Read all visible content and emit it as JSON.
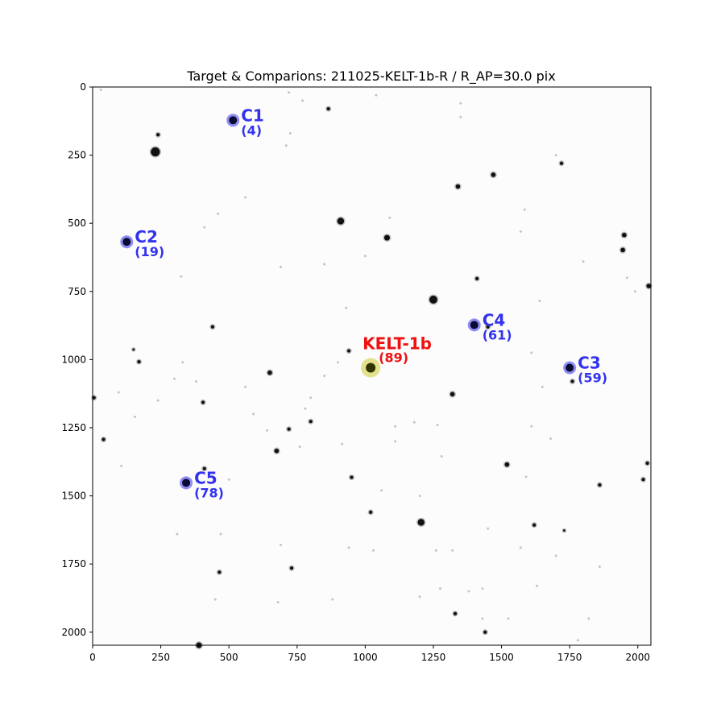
{
  "chart_data": {
    "type": "scatter",
    "title": "Target & Comparions: 211025-KELT-1b-R / R_AP=30.0 pix",
    "xlim": [
      0,
      2048
    ],
    "ylim": [
      2048,
      0
    ],
    "x_ticks": [
      0,
      250,
      500,
      750,
      1000,
      1250,
      1500,
      1750,
      2000
    ],
    "y_ticks": [
      0,
      250,
      500,
      750,
      1000,
      1250,
      1500,
      1750,
      2000
    ],
    "target": {
      "name": "KELT-1b",
      "id": "(89)",
      "x": 1020,
      "y": 1030,
      "color": "#cccc33",
      "label_color": "#ee1111"
    },
    "comparisons": [
      {
        "name": "C1",
        "id": "(4)",
        "x": 515,
        "y": 122
      },
      {
        "name": "C2",
        "id": "(19)",
        "x": 125,
        "y": 568
      },
      {
        "name": "C3",
        "id": "(59)",
        "x": 1750,
        "y": 1030
      },
      {
        "name": "C4",
        "id": "(61)",
        "x": 1400,
        "y": 873
      },
      {
        "name": "C5",
        "id": "(78)",
        "x": 343,
        "y": 1452
      }
    ],
    "comparison_color": "#3333ee",
    "field_stars": [
      [
        230,
        238,
        8
      ],
      [
        910,
        492,
        6
      ],
      [
        1080,
        553,
        5
      ],
      [
        1250,
        780,
        7
      ],
      [
        1205,
        1597,
        6
      ],
      [
        1320,
        1127,
        4
      ],
      [
        1340,
        365,
        4
      ],
      [
        1470,
        322,
        4
      ],
      [
        1410,
        703,
        3
      ],
      [
        1950,
        543,
        4
      ],
      [
        1945,
        598,
        4
      ],
      [
        2040,
        730,
        4
      ],
      [
        650,
        1048,
        4
      ],
      [
        675,
        1335,
        4
      ],
      [
        1520,
        1385,
        4
      ],
      [
        2035,
        1380,
        3
      ],
      [
        2020,
        1440,
        3
      ],
      [
        1620,
        1607,
        3
      ],
      [
        1440,
        2000,
        3
      ],
      [
        1330,
        1932,
        3
      ],
      [
        730,
        1765,
        3
      ],
      [
        465,
        1780,
        3
      ],
      [
        410,
        1400,
        3
      ],
      [
        405,
        1157,
        3
      ],
      [
        440,
        880,
        3
      ],
      [
        170,
        1008,
        3
      ],
      [
        150,
        963,
        2
      ],
      [
        40,
        1293,
        3
      ],
      [
        5,
        1140,
        3
      ],
      [
        1020,
        1560,
        3
      ],
      [
        940,
        968,
        3
      ],
      [
        800,
        1227,
        3
      ],
      [
        720,
        1255,
        3
      ],
      [
        1720,
        280,
        3
      ],
      [
        865,
        80,
        3
      ],
      [
        240,
        175,
        3
      ],
      [
        950,
        1432,
        3
      ],
      [
        1730,
        1627,
        2
      ],
      [
        1860,
        1460,
        3
      ],
      [
        1760,
        1080,
        3
      ],
      [
        390,
        2048,
        5
      ],
      [
        1450,
        880,
        3
      ]
    ],
    "faint_stars": [
      [
        30,
        10
      ],
      [
        1040,
        30
      ],
      [
        720,
        20
      ],
      [
        770,
        50
      ],
      [
        1350,
        60
      ],
      [
        1350,
        110
      ],
      [
        1700,
        250
      ],
      [
        725,
        170
      ],
      [
        710,
        215
      ],
      [
        460,
        465
      ],
      [
        410,
        515
      ],
      [
        325,
        695
      ],
      [
        1570,
        530
      ],
      [
        1585,
        450
      ],
      [
        1640,
        785
      ],
      [
        1610,
        975
      ],
      [
        1110,
        1245
      ],
      [
        1180,
        1230
      ],
      [
        1265,
        1240
      ],
      [
        1280,
        1355
      ],
      [
        1610,
        1245
      ],
      [
        1680,
        1290
      ],
      [
        1590,
        1430
      ],
      [
        1450,
        1620
      ],
      [
        1570,
        1690
      ],
      [
        1700,
        1720
      ],
      [
        1630,
        1830
      ],
      [
        1860,
        1760
      ],
      [
        1780,
        2030
      ],
      [
        1525,
        1950
      ],
      [
        1430,
        1950
      ],
      [
        1275,
        1840
      ],
      [
        1200,
        1870
      ],
      [
        1030,
        1700
      ],
      [
        690,
        1680
      ],
      [
        940,
        1690
      ],
      [
        880,
        1880
      ],
      [
        680,
        1890
      ],
      [
        450,
        1880
      ],
      [
        470,
        1640
      ],
      [
        310,
        1640
      ],
      [
        105,
        1390
      ],
      [
        240,
        1150
      ],
      [
        95,
        1120
      ],
      [
        155,
        1210
      ],
      [
        300,
        1070
      ],
      [
        380,
        1080
      ],
      [
        330,
        1010
      ],
      [
        560,
        1100
      ],
      [
        590,
        1200
      ],
      [
        640,
        1260
      ],
      [
        760,
        1320
      ],
      [
        915,
        1310
      ],
      [
        1110,
        1300
      ],
      [
        1320,
        1700
      ],
      [
        1430,
        1840
      ],
      [
        1380,
        1850
      ],
      [
        1260,
        1700
      ],
      [
        1200,
        1500
      ],
      [
        1060,
        1480
      ],
      [
        900,
        1010
      ],
      [
        800,
        1140
      ],
      [
        850,
        1060
      ],
      [
        780,
        1180
      ],
      [
        1090,
        480
      ],
      [
        1000,
        620
      ],
      [
        930,
        810
      ],
      [
        850,
        650
      ],
      [
        560,
        405
      ],
      [
        690,
        660
      ],
      [
        1990,
        750
      ],
      [
        1960,
        700
      ],
      [
        1800,
        640
      ],
      [
        1650,
        1100
      ],
      [
        1820,
        1950
      ],
      [
        500,
        1440
      ]
    ]
  }
}
